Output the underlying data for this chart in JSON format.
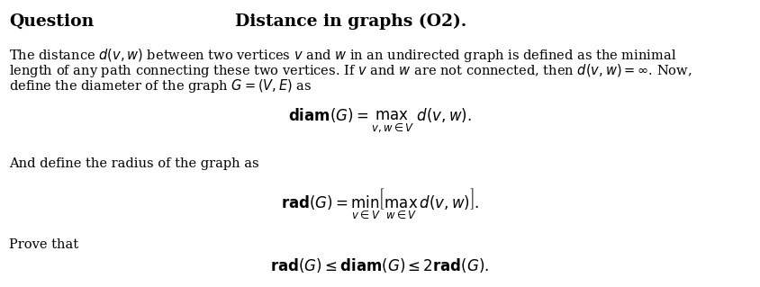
{
  "bg_color": "#ffffff",
  "text_color": "#000000",
  "title_left": "Question",
  "title_right": "Distance in graphs (O2).",
  "body_line1": "The distance $d(v, w)$ between two vertices $v$ and $w$ in an undirected graph is defined as the minimal",
  "body_line2": "length of any path connecting these two vertices. If $v$ and $w$ are not connected, then $d(v, w) = \\infty$. Now,",
  "body_line3": "define the diameter of the graph $G = (V, E)$ as",
  "eq_diam": "$\\mathbf{diam}(G) = \\underset{v,w\\in V}{\\max}\\ d(v, w).$",
  "middle_text": "And define the radius of the graph as",
  "eq_rad": "$\\mathbf{rad}(G) = \\underset{v\\in V}{\\min}\\left[\\underset{w\\in V}{\\max}\\, d(v, w)\\right].$",
  "prove_text": "Prove that",
  "eq_prove": "$\\mathbf{rad}(G) \\leq \\mathbf{diam}(G) \\leq 2\\mathbf{rad}(G).$",
  "title_fontsize": 13.5,
  "body_fontsize": 10.5,
  "eq_fontsize": 12,
  "fig_width": 8.45,
  "fig_height": 3.19,
  "dpi": 100
}
